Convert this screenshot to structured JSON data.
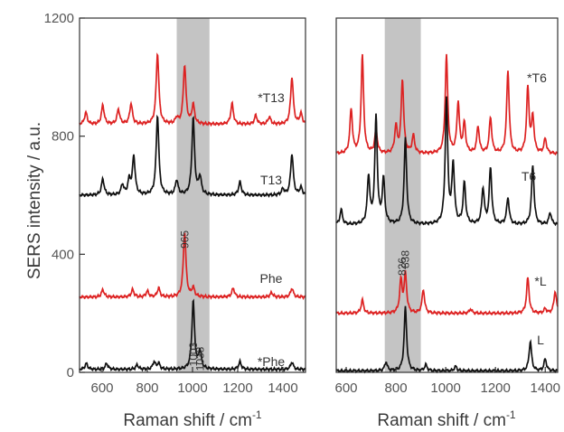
{
  "chart_data": [
    {
      "type": "line",
      "xlabel": "Raman shift / cm",
      "xlabel_sup": "-1",
      "ylabel": "SERS intensity / a.u.",
      "xlim": [
        500,
        1500
      ],
      "ylim": [
        0,
        1200
      ],
      "xticks": [
        600,
        800,
        1000,
        1200,
        1400
      ],
      "yticks": [
        0,
        400,
        800,
        1200
      ],
      "shaded_band": [
        930,
        1075
      ],
      "series": [
        {
          "name": "*T13",
          "color": "#dd2222",
          "baseline": 840,
          "peaks": [
            [
              528,
              40
            ],
            [
              603,
              65
            ],
            [
              672,
              50
            ],
            [
              728,
              70
            ],
            [
              845,
              240
            ],
            [
              930,
              20
            ],
            [
              965,
              200
            ],
            [
              1003,
              65
            ],
            [
              1175,
              70
            ],
            [
              1280,
              30
            ],
            [
              1340,
              25
            ],
            [
              1440,
              160
            ],
            [
              1480,
              35
            ]
          ]
        },
        {
          "name": "T13",
          "color": "#111111",
          "baseline": 600,
          "peaks": [
            [
              603,
              55
            ],
            [
              690,
              35
            ],
            [
              720,
              50
            ],
            [
              740,
              130
            ],
            [
              845,
              270
            ],
            [
              930,
              50
            ],
            [
              1003,
              260
            ],
            [
              1033,
              60
            ],
            [
              1210,
              45
            ],
            [
              1400,
              20
            ],
            [
              1440,
              140
            ],
            [
              1480,
              25
            ]
          ]
        },
        {
          "name": "Phe",
          "color": "#dd2222",
          "baseline": 255,
          "peaks": [
            [
              603,
              25
            ],
            [
              735,
              25
            ],
            [
              800,
              20
            ],
            [
              850,
              30
            ],
            [
              965,
              220
            ],
            [
              1003,
              30
            ],
            [
              1180,
              30
            ],
            [
              1350,
              15
            ],
            [
              1440,
              30
            ]
          ]
        },
        {
          "name": "*Phe",
          "color": "#111111",
          "baseline": 10,
          "peaks": [
            [
              530,
              20
            ],
            [
              620,
              20
            ],
            [
              755,
              15
            ],
            [
              830,
              25
            ],
            [
              850,
              20
            ],
            [
              1003,
              230
            ],
            [
              1033,
              60
            ],
            [
              1210,
              25
            ],
            [
              1440,
              25
            ]
          ]
        }
      ],
      "annotations": [
        {
          "text": "965",
          "x": 965
        },
        {
          "text": "1003",
          "x": 1003
        },
        {
          "text": "1033",
          "x": 1033
        }
      ]
    },
    {
      "type": "line",
      "xlabel": "Raman shift / cm",
      "xlabel_sup": "-1",
      "xlim": [
        560,
        1450
      ],
      "ylim": [
        0,
        1200
      ],
      "xticks": [
        600,
        800,
        1000,
        1200,
        1400
      ],
      "shaded_band": [
        755,
        900
      ],
      "series": [
        {
          "name": "*T6",
          "color": "#dd2222",
          "baseline": 740,
          "peaks": [
            [
              620,
              150
            ],
            [
              665,
              330
            ],
            [
              720,
              80
            ],
            [
              800,
              90
            ],
            [
              826,
              250
            ],
            [
              870,
              60
            ],
            [
              1003,
              330
            ],
            [
              1050,
              170
            ],
            [
              1075,
              100
            ],
            [
              1130,
              90
            ],
            [
              1180,
              120
            ],
            [
              1250,
              280
            ],
            [
              1330,
              220
            ],
            [
              1350,
              120
            ],
            [
              1400,
              50
            ]
          ]
        },
        {
          "name": "T6",
          "color": "#111111",
          "baseline": 500,
          "peaks": [
            [
              580,
              50
            ],
            [
              690,
              160
            ],
            [
              720,
              360
            ],
            [
              750,
              150
            ],
            [
              838,
              290
            ],
            [
              1003,
              420
            ],
            [
              1030,
              200
            ],
            [
              1075,
              140
            ],
            [
              1150,
              120
            ],
            [
              1180,
              190
            ],
            [
              1250,
              90
            ],
            [
              1350,
              200
            ],
            [
              1420,
              40
            ]
          ]
        },
        {
          "name": "*L",
          "color": "#dd2222",
          "baseline": 200,
          "peaks": [
            [
              665,
              45
            ],
            [
              820,
              110
            ],
            [
              838,
              130
            ],
            [
              910,
              80
            ],
            [
              1100,
              15
            ],
            [
              1330,
              120
            ],
            [
              1400,
              15
            ],
            [
              1440,
              75
            ]
          ]
        },
        {
          "name": "L",
          "color": "#111111",
          "baseline": 5,
          "peaks": [
            [
              760,
              30
            ],
            [
              838,
              215
            ],
            [
              920,
              20
            ],
            [
              1040,
              15
            ],
            [
              1340,
              100
            ],
            [
              1400,
              40
            ]
          ]
        }
      ],
      "annotations": [
        {
          "text": "826",
          "x": 826
        },
        {
          "text": "838",
          "x": 838
        }
      ]
    }
  ]
}
